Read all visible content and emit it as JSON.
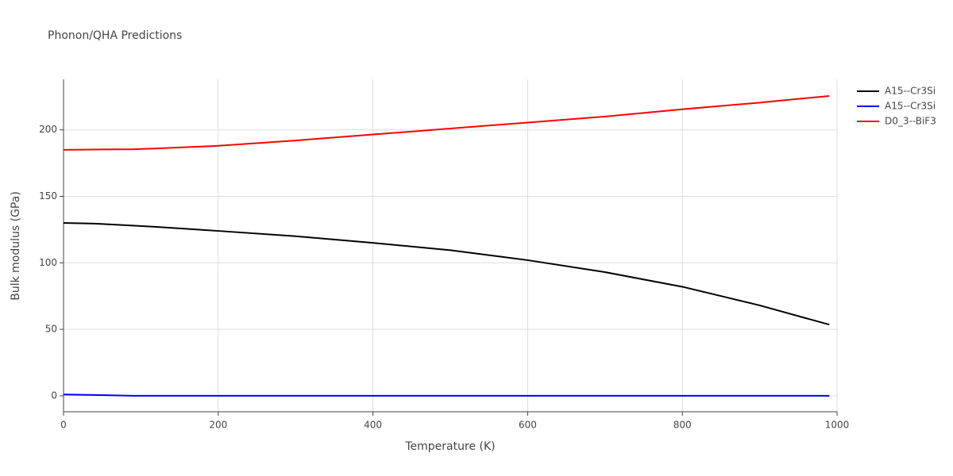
{
  "chart_data": {
    "type": "line",
    "title": "Phonon/QHA Predictions",
    "x_label": "Temperature (K)",
    "y_label": "Bulk modulus (GPa)",
    "x": [
      0,
      40,
      90,
      120,
      200,
      300,
      400,
      500,
      600,
      700,
      800,
      900,
      990
    ],
    "series": [
      {
        "name": "A15--Cr3Si",
        "color": "#000000",
        "values": [
          130,
          129.5,
          128,
          127,
          124,
          120,
          115,
          109.5,
          102,
          93,
          82,
          68,
          53.5
        ]
      },
      {
        "name": "A15--Cr3Si",
        "color": "#0000ff",
        "values": [
          1,
          0.6,
          0,
          0,
          0,
          0,
          0,
          0,
          0,
          0,
          0,
          0,
          0
        ]
      },
      {
        "name": "D0_3--BiF3",
        "color": "#ff0000",
        "values": [
          185,
          185.2,
          185.4,
          186,
          188,
          192,
          196.5,
          201,
          205.5,
          210,
          215.5,
          220.5,
          225.5
        ]
      }
    ],
    "xlim": [
      0,
      1000
    ],
    "xticks": [
      0,
      200,
      400,
      600,
      800,
      1000
    ],
    "ylim": [
      -12,
      238
    ],
    "yticks": [
      0,
      50,
      100,
      150,
      200
    ],
    "grid": true,
    "legend": "right"
  }
}
